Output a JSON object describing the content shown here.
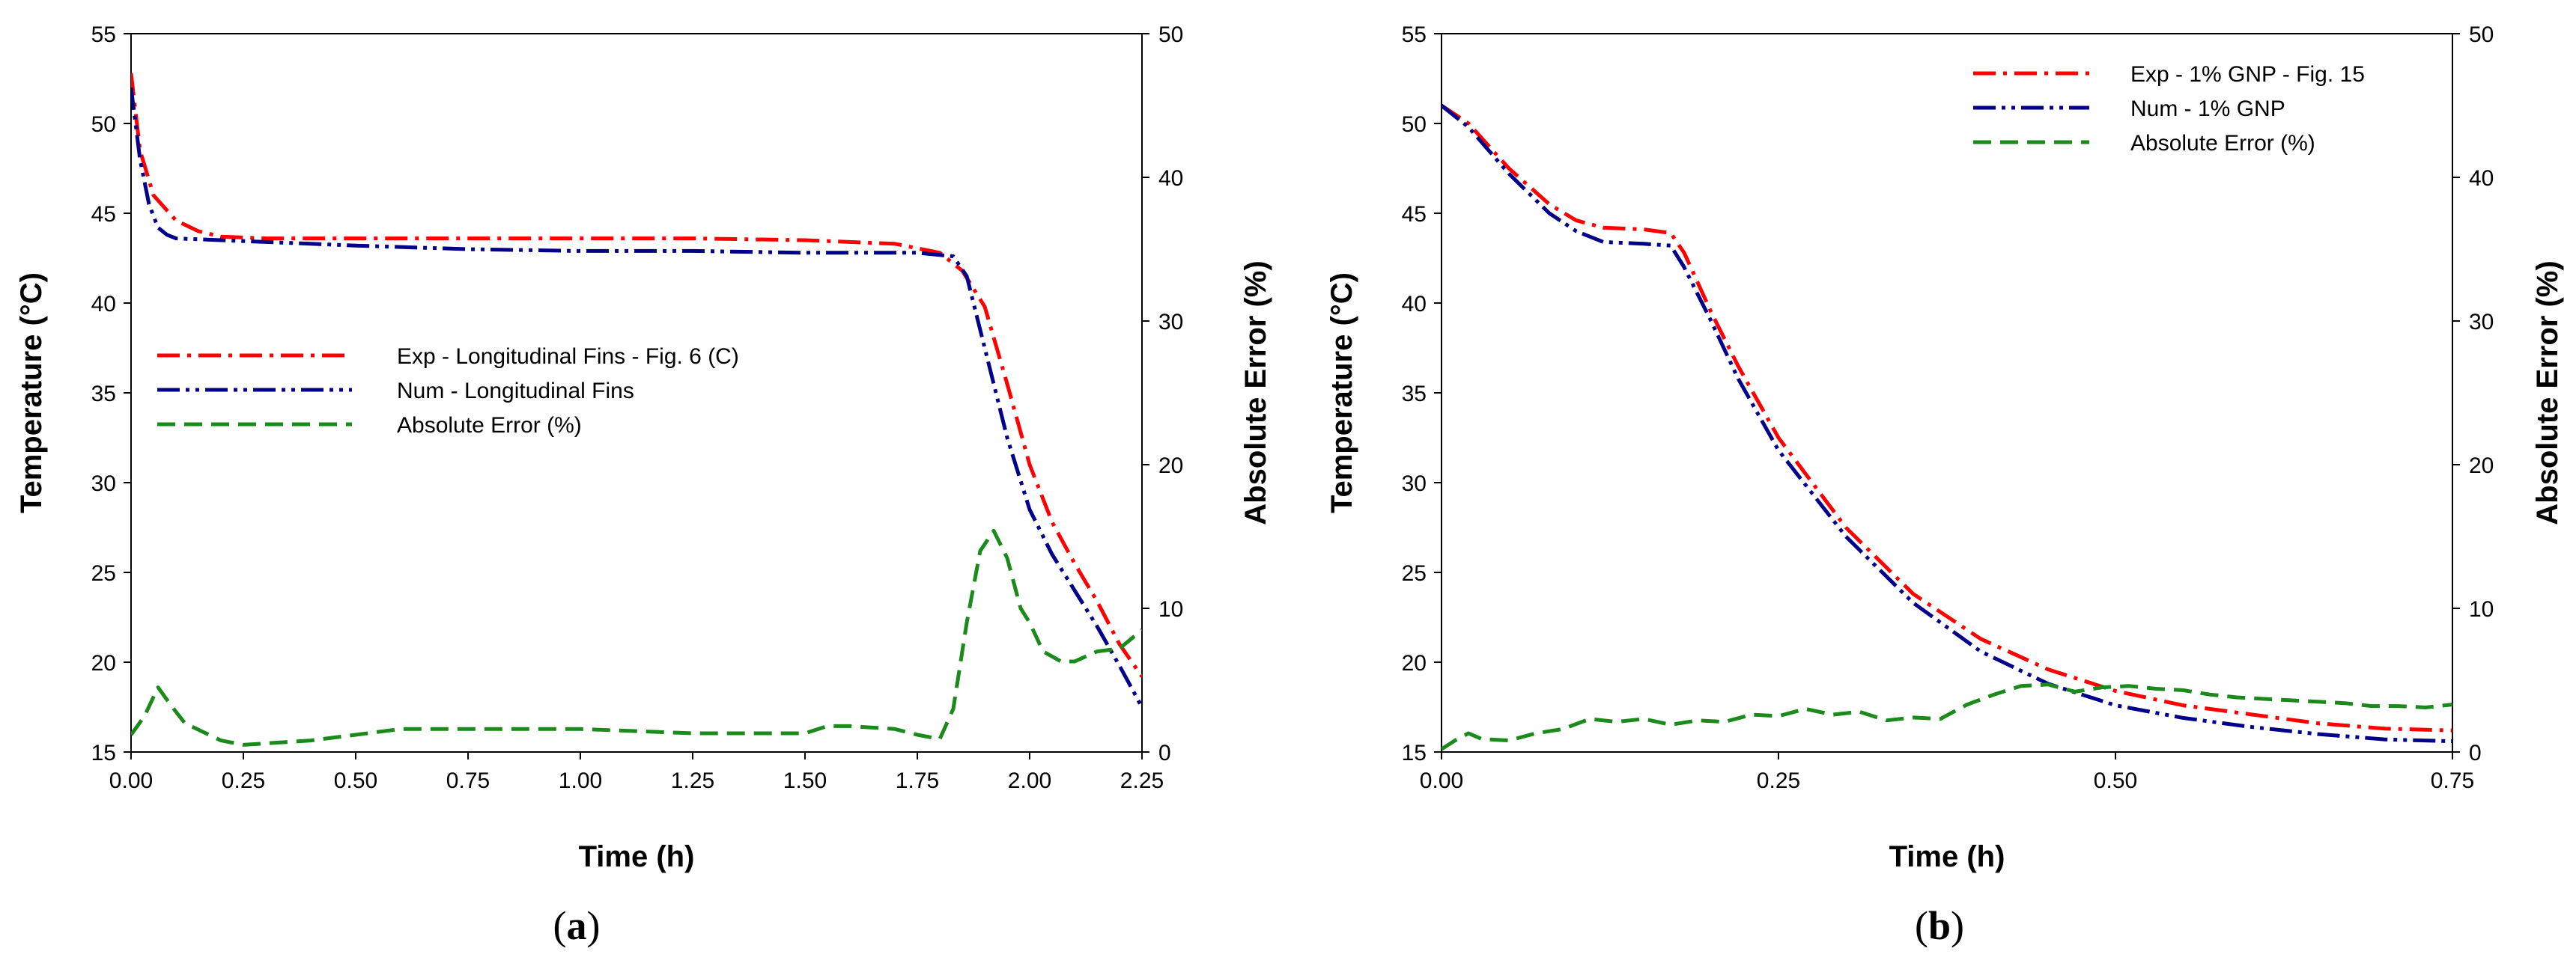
{
  "chart_data": [
    {
      "type": "line",
      "panel_label": "a",
      "xlabel": "Time (h)",
      "ylabel": "Temperature (°C)",
      "y2label": "Absolute Error (%)",
      "xlim": [
        0,
        2.25
      ],
      "ylim": [
        15,
        55
      ],
      "y2lim": [
        0,
        50
      ],
      "xticks": [
        "0.00",
        "0.25",
        "0.50",
        "0.75",
        "1.00",
        "1.25",
        "1.50",
        "1.75",
        "2.00",
        "2.25"
      ],
      "yticks": [
        "15",
        "20",
        "25",
        "30",
        "35",
        "40",
        "45",
        "50",
        "55"
      ],
      "y2ticks": [
        "0",
        "10",
        "20",
        "30",
        "40",
        "50"
      ],
      "legend_position": "center-left",
      "series": [
        {
          "name": "Exp - Longitudinal Fins - Fig. 6 (C)",
          "axis": "left",
          "color": "#ff0000",
          "style": "dash-dot",
          "x": [
            0,
            0.02,
            0.05,
            0.1,
            0.15,
            0.2,
            0.3,
            0.5,
            0.75,
            1.0,
            1.25,
            1.5,
            1.7,
            1.8,
            1.85,
            1.9,
            1.95,
            2.0,
            2.05,
            2.1,
            2.15,
            2.2,
            2.25
          ],
          "y": [
            52.8,
            48.5,
            46.0,
            44.6,
            44.0,
            43.7,
            43.6,
            43.6,
            43.6,
            43.6,
            43.6,
            43.5,
            43.3,
            42.8,
            41.8,
            39.8,
            35.5,
            31.0,
            27.8,
            25.5,
            23.4,
            21.0,
            19.2
          ]
        },
        {
          "name": "Num - Longitudinal Fins",
          "axis": "left",
          "color": "#00008b",
          "style": "dash-dot-dot",
          "x": [
            0,
            0.02,
            0.04,
            0.06,
            0.08,
            0.1,
            0.2,
            0.3,
            0.5,
            0.75,
            1.0,
            1.25,
            1.5,
            1.75,
            1.83,
            1.86,
            1.9,
            1.95,
            2.0,
            2.05,
            2.1,
            2.15,
            2.2,
            2.25
          ],
          "y": [
            52.0,
            48.0,
            45.5,
            44.2,
            43.8,
            43.6,
            43.5,
            43.4,
            43.2,
            43.0,
            42.9,
            42.9,
            42.8,
            42.8,
            42.6,
            41.5,
            37.5,
            32.5,
            28.5,
            26.0,
            24.0,
            22.0,
            19.8,
            17.5
          ]
        },
        {
          "name": "Absolute Error (%)",
          "axis": "right",
          "color": "#1a8a1a",
          "style": "dashed",
          "x": [
            0,
            0.03,
            0.06,
            0.09,
            0.12,
            0.2,
            0.25,
            0.3,
            0.4,
            0.5,
            0.6,
            0.75,
            1.0,
            1.25,
            1.5,
            1.55,
            1.6,
            1.7,
            1.75,
            1.8,
            1.83,
            1.86,
            1.89,
            1.92,
            1.95,
            1.98,
            2.0,
            2.03,
            2.07,
            2.1,
            2.15,
            2.2,
            2.25
          ],
          "y": [
            1.2,
            2.5,
            4.5,
            3.2,
            2.0,
            0.8,
            0.5,
            0.6,
            0.8,
            1.2,
            1.6,
            1.6,
            1.6,
            1.3,
            1.3,
            1.8,
            1.8,
            1.6,
            1.2,
            0.9,
            3.0,
            9.0,
            14.0,
            15.4,
            13.5,
            10.0,
            9.0,
            7.0,
            6.3,
            6.3,
            7.0,
            7.2,
            8.5
          ]
        }
      ]
    },
    {
      "type": "line",
      "panel_label": "b",
      "xlabel": "Time (h)",
      "ylabel": "Temperature (°C)",
      "y2label": "Absolute Error (%)",
      "xlim": [
        0,
        0.75
      ],
      "ylim": [
        15,
        55
      ],
      "y2lim": [
        0,
        50
      ],
      "xticks": [
        "0.00",
        "0.25",
        "0.50",
        "0.75"
      ],
      "yticks": [
        "15",
        "20",
        "25",
        "30",
        "35",
        "40",
        "45",
        "50",
        "55"
      ],
      "y2ticks": [
        "0",
        "10",
        "20",
        "30",
        "40",
        "50"
      ],
      "legend_position": "top-right",
      "series": [
        {
          "name": "Exp - 1% GNP - Fig. 15",
          "axis": "left",
          "color": "#ff0000",
          "style": "dash-dot",
          "x": [
            0,
            0.02,
            0.05,
            0.08,
            0.1,
            0.12,
            0.15,
            0.17,
            0.18,
            0.2,
            0.22,
            0.25,
            0.3,
            0.35,
            0.4,
            0.45,
            0.5,
            0.55,
            0.6,
            0.65,
            0.7,
            0.75
          ],
          "y": [
            51.0,
            50.0,
            47.5,
            45.5,
            44.6,
            44.2,
            44.1,
            43.9,
            42.8,
            39.5,
            36.5,
            32.5,
            27.5,
            23.8,
            21.3,
            19.6,
            18.4,
            17.6,
            17.1,
            16.6,
            16.3,
            16.2
          ]
        },
        {
          "name": "Num - 1% GNP",
          "axis": "left",
          "color": "#00008b",
          "style": "dash-dot-dot",
          "x": [
            0,
            0.02,
            0.05,
            0.08,
            0.1,
            0.12,
            0.15,
            0.17,
            0.18,
            0.2,
            0.22,
            0.25,
            0.3,
            0.35,
            0.4,
            0.45,
            0.5,
            0.55,
            0.6,
            0.65,
            0.7,
            0.75
          ],
          "y": [
            51.0,
            49.8,
            47.2,
            45.0,
            44.0,
            43.4,
            43.3,
            43.2,
            42.0,
            39.0,
            35.8,
            31.8,
            27.0,
            23.3,
            20.6,
            18.8,
            17.6,
            16.9,
            16.4,
            16.0,
            15.7,
            15.6
          ]
        },
        {
          "name": "Absolute Error (%)",
          "axis": "right",
          "color": "#1a8a1a",
          "style": "dashed",
          "x": [
            0,
            0.01,
            0.02,
            0.03,
            0.05,
            0.07,
            0.09,
            0.11,
            0.13,
            0.15,
            0.17,
            0.19,
            0.21,
            0.23,
            0.25,
            0.27,
            0.29,
            0.31,
            0.33,
            0.35,
            0.37,
            0.39,
            0.41,
            0.43,
            0.45,
            0.47,
            0.49,
            0.51,
            0.53,
            0.55,
            0.57,
            0.59,
            0.61,
            0.63,
            0.65,
            0.67,
            0.69,
            0.71,
            0.73,
            0.75
          ],
          "y": [
            0.2,
            0.8,
            1.3,
            0.9,
            0.8,
            1.3,
            1.6,
            2.3,
            2.1,
            2.3,
            1.9,
            2.2,
            2.1,
            2.6,
            2.5,
            3.0,
            2.6,
            2.8,
            2.2,
            2.4,
            2.3,
            3.3,
            4.0,
            4.6,
            4.7,
            4.2,
            4.5,
            4.6,
            4.4,
            4.3,
            4.0,
            3.8,
            3.7,
            3.6,
            3.5,
            3.4,
            3.2,
            3.2,
            3.1,
            3.3
          ]
        }
      ]
    }
  ]
}
